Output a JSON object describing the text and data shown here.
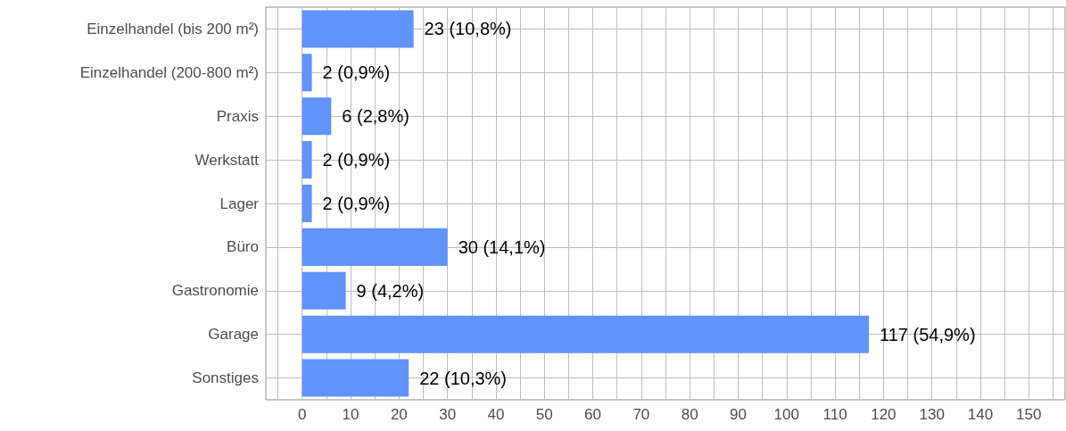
{
  "chart_data": {
    "type": "bar",
    "orientation": "horizontal",
    "categories": [
      "Einzelhandel (bis 200 m²)",
      "Einzelhandel (200-800 m²)",
      "Praxis",
      "Werkstatt",
      "Lager",
      "Büro",
      "Gastronomie",
      "Garage",
      "Sonstiges"
    ],
    "values": [
      23,
      2,
      6,
      2,
      2,
      30,
      9,
      117,
      22
    ],
    "value_labels": [
      "23 (10,8%)",
      "2 (0,9%)",
      "6 (2,8%)",
      "2 (0,9%)",
      "2 (0,9%)",
      "30 (14,1%)",
      "9 (4,2%)",
      "117 (54,9%)",
      "22 (10,3%)"
    ],
    "color": "#6193f8",
    "xlim": [
      -7.5,
      157.5
    ],
    "xticks": [
      0,
      10,
      20,
      30,
      40,
      50,
      60,
      70,
      80,
      90,
      100,
      110,
      120,
      130,
      140,
      150
    ],
    "grid": true
  }
}
